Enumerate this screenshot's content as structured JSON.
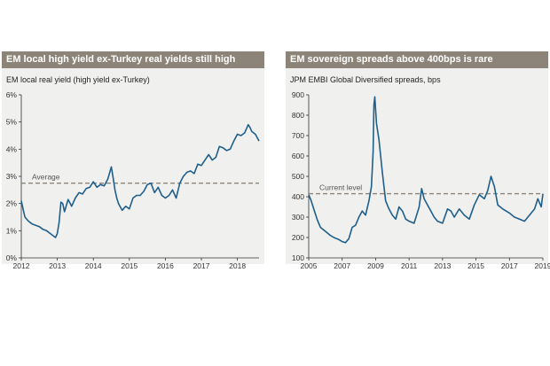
{
  "panels": [
    {
      "title": "EM local high yield ex-Turkey real yields still high",
      "subtitle": "EM local real yield (high yield ex-Turkey)"
    },
    {
      "title": "EM sovereign spreads above 400bps is rare",
      "subtitle": "JPM EMBI Global Diversified spreads, bps"
    }
  ],
  "chart_data": [
    {
      "type": "line",
      "title": "EM local high yield ex-Turkey real yields still high",
      "subtitle": "EM local real yield (high yield ex-Turkey)",
      "xlabel": "",
      "ylabel": "",
      "xlim": [
        2012.0,
        2018.6
      ],
      "ylim": [
        0,
        6
      ],
      "x_ticks": [
        2012,
        2013,
        2014,
        2015,
        2016,
        2017,
        2018
      ],
      "x_tick_labels": [
        "2012",
        "2013",
        "2014",
        "2015",
        "2016",
        "2017",
        "2018"
      ],
      "y_ticks": [
        0,
        1,
        2,
        3,
        4,
        5,
        6
      ],
      "y_tick_labels": [
        "0%",
        "1%",
        "2%",
        "3%",
        "4%",
        "5%",
        "6%"
      ],
      "grid": false,
      "line_color": "#1f5f8b",
      "reference_color": "#8c8478",
      "reference_line": {
        "label": "Average",
        "value": 2.75
      },
      "series": [
        {
          "x": [
            2012.0,
            2012.05,
            2012.1,
            2012.2,
            2012.3,
            2012.4,
            2012.5,
            2012.6,
            2012.7,
            2012.8,
            2012.9,
            2012.95,
            2013.0,
            2013.05,
            2013.1,
            2013.15,
            2013.2,
            2013.3,
            2013.4,
            2013.5,
            2013.6,
            2013.7,
            2013.8,
            2013.9,
            2014.0,
            2014.1,
            2014.2,
            2014.3,
            2014.4,
            2014.5,
            2014.55,
            2014.6,
            2014.65,
            2014.7,
            2014.8,
            2014.9,
            2015.0,
            2015.1,
            2015.2,
            2015.3,
            2015.4,
            2015.5,
            2015.6,
            2015.7,
            2015.8,
            2015.9,
            2016.0,
            2016.1,
            2016.2,
            2016.3,
            2016.4,
            2016.5,
            2016.6,
            2016.7,
            2016.8,
            2016.9,
            2017.0,
            2017.1,
            2017.2,
            2017.3,
            2017.4,
            2017.5,
            2017.6,
            2017.7,
            2017.8,
            2017.9,
            2018.0,
            2018.1,
            2018.2,
            2018.3,
            2018.35,
            2018.4,
            2018.5,
            2018.6
          ],
          "values": [
            2.1,
            1.8,
            1.5,
            1.35,
            1.25,
            1.2,
            1.15,
            1.05,
            1.0,
            0.9,
            0.8,
            0.75,
            0.9,
            1.3,
            2.05,
            2.0,
            1.7,
            2.15,
            1.9,
            2.2,
            2.4,
            2.35,
            2.55,
            2.6,
            2.8,
            2.6,
            2.7,
            2.65,
            2.9,
            3.35,
            2.95,
            2.5,
            2.2,
            2.0,
            1.75,
            1.9,
            1.8,
            2.2,
            2.3,
            2.3,
            2.45,
            2.7,
            2.75,
            2.4,
            2.6,
            2.3,
            2.2,
            2.3,
            2.5,
            2.2,
            2.75,
            3.0,
            3.15,
            3.2,
            3.1,
            3.45,
            3.4,
            3.6,
            3.8,
            3.6,
            3.7,
            4.1,
            4.05,
            3.95,
            4.0,
            4.3,
            4.55,
            4.5,
            4.6,
            4.9,
            4.8,
            4.65,
            4.55,
            4.3
          ]
        }
      ]
    },
    {
      "type": "line",
      "title": "EM sovereign spreads above 400bps is rare",
      "subtitle": "JPM EMBI Global Diversified spreads, bps",
      "xlabel": "",
      "ylabel": "",
      "xlim": [
        2005.0,
        2019.0
      ],
      "ylim": [
        100,
        900
      ],
      "x_ticks": [
        2005,
        2007,
        2009,
        2011,
        2013,
        2015,
        2017,
        2019
      ],
      "x_tick_labels": [
        "2005",
        "2007",
        "2009",
        "2011",
        "2013",
        "2015",
        "2017",
        "2019"
      ],
      "y_ticks": [
        100,
        200,
        300,
        400,
        500,
        600,
        700,
        800,
        900
      ],
      "y_tick_labels": [
        "100",
        "200",
        "300",
        "400",
        "500",
        "600",
        "700",
        "800",
        "900"
      ],
      "grid": false,
      "line_color": "#1f5f8b",
      "reference_color": "#8c8478",
      "reference_line": {
        "label": "Current level",
        "value": 415
      },
      "series": [
        {
          "x": [
            2005.0,
            2005.15,
            2005.3,
            2005.5,
            2005.7,
            2006.0,
            2006.3,
            2006.5,
            2006.8,
            2007.0,
            2007.2,
            2007.4,
            2007.6,
            2007.8,
            2008.0,
            2008.2,
            2008.4,
            2008.6,
            2008.75,
            2008.85,
            2008.9,
            2008.95,
            2009.05,
            2009.2,
            2009.4,
            2009.6,
            2009.8,
            2010.0,
            2010.2,
            2010.4,
            2010.6,
            2010.8,
            2011.0,
            2011.3,
            2011.6,
            2011.75,
            2011.9,
            2012.1,
            2012.3,
            2012.5,
            2012.7,
            2013.0,
            2013.3,
            2013.5,
            2013.7,
            2014.0,
            2014.3,
            2014.6,
            2014.9,
            2015.2,
            2015.5,
            2015.7,
            2015.9,
            2016.1,
            2016.3,
            2016.6,
            2017.0,
            2017.3,
            2017.6,
            2017.9,
            2018.2,
            2018.5,
            2018.7,
            2018.9,
            2019.0
          ],
          "values": [
            410,
            380,
            340,
            290,
            250,
            230,
            210,
            200,
            190,
            180,
            175,
            195,
            250,
            260,
            300,
            330,
            310,
            380,
            450,
            620,
            850,
            890,
            760,
            680,
            520,
            380,
            340,
            310,
            290,
            350,
            330,
            290,
            280,
            270,
            350,
            440,
            390,
            360,
            330,
            300,
            280,
            270,
            340,
            330,
            300,
            340,
            310,
            290,
            360,
            410,
            390,
            430,
            500,
            450,
            360,
            340,
            320,
            300,
            290,
            280,
            310,
            340,
            390,
            350,
            415
          ]
        }
      ]
    }
  ]
}
